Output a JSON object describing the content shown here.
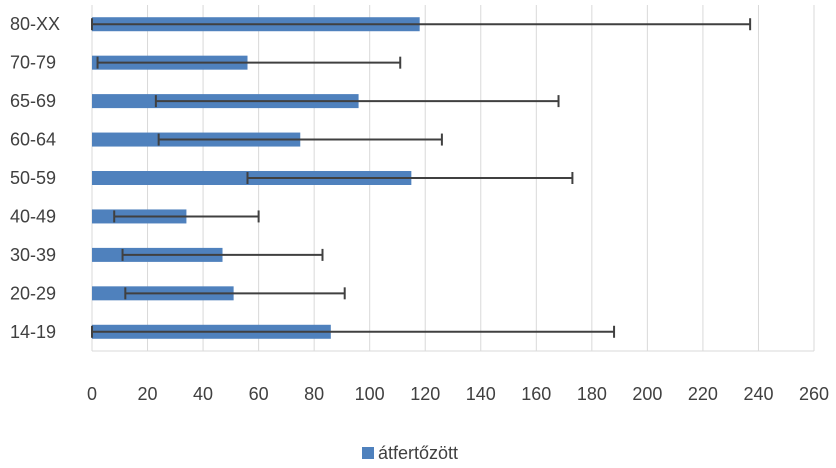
{
  "chart_data": {
    "type": "bar",
    "orientation": "horizontal",
    "title": "",
    "xlabel": "",
    "ylabel": "",
    "categories": [
      "14-19",
      "20-29",
      "30-39",
      "40-49",
      "50-59",
      "60-64",
      "65-69",
      "70-79",
      "80-XX"
    ],
    "series": [
      {
        "name": "átfertőzött",
        "values": [
          86,
          51,
          47,
          34,
          115,
          75,
          96,
          56,
          118
        ],
        "error_low": [
          0,
          12,
          11,
          8,
          56,
          24,
          23,
          2,
          0
        ],
        "error_high": [
          188,
          91,
          83,
          60,
          173,
          126,
          168,
          111,
          237
        ]
      }
    ],
    "xlim": [
      0,
      260
    ],
    "xticks": [
      0,
      20,
      40,
      60,
      80,
      100,
      120,
      140,
      160,
      180,
      200,
      220,
      240,
      260
    ],
    "grid": true,
    "legend_position": "bottom",
    "colors": {
      "bar": "#4F81BD",
      "error_bar": "#404040",
      "grid": "#D9D9D9",
      "text": "#404040"
    }
  }
}
